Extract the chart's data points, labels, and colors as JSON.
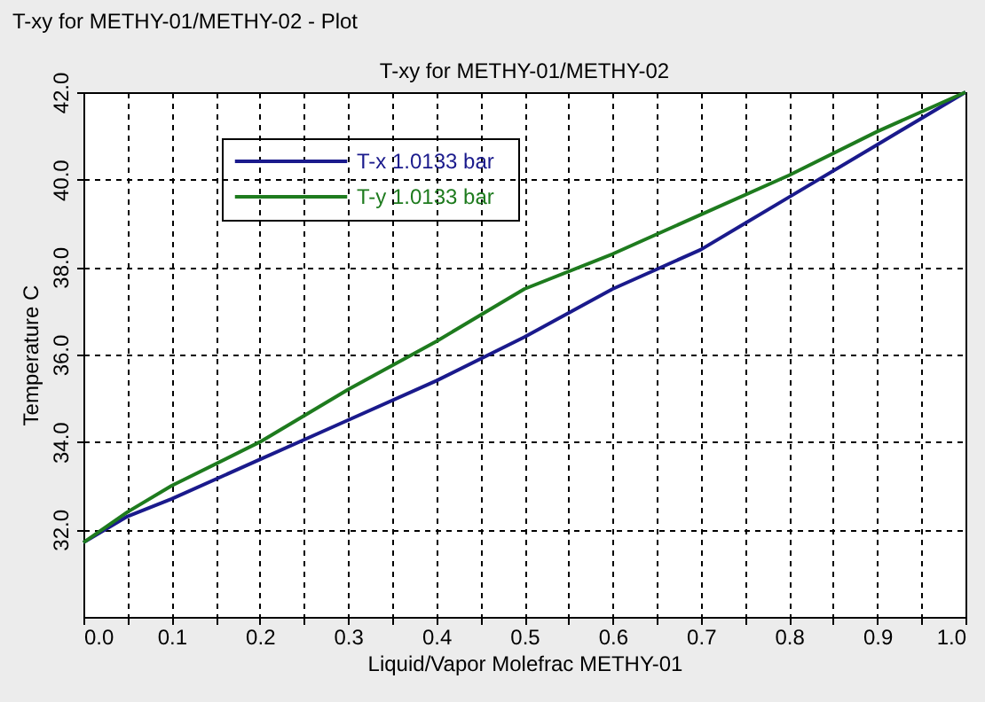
{
  "chart_data": {
    "type": "line",
    "title": "T-xy for METHY-01/METHY-02",
    "xlabel": "Liquid/Vapor Molefrac METHY-01",
    "ylabel": "Temperature  C",
    "annotations": [
      "T-xy for METHY-01/METHY-02 - Plot"
    ],
    "x": [
      0,
      0.05,
      0.1,
      0.2,
      0.3,
      0.4,
      0.5,
      0.6,
      0.7,
      0.8,
      0.9,
      1.0
    ],
    "series": [
      {
        "name": "T-x   1.0133 bar",
        "color": "#1a1a8c",
        "values": [
          31.7,
          32.3,
          32.7,
          33.6,
          34.5,
          35.4,
          36.4,
          37.5,
          38.4,
          39.6,
          40.8,
          42.0
        ]
      },
      {
        "name": "T-y   1.0133 bar",
        "color": "#1e7b1e",
        "values": [
          31.7,
          32.4,
          33.0,
          34.0,
          35.2,
          36.3,
          37.5,
          38.3,
          39.2,
          40.1,
          41.1,
          42.0
        ]
      }
    ],
    "xlim": [
      0,
      1
    ],
    "ylim": [
      30,
      42
    ],
    "xticks": [
      {
        "value": 0,
        "label": "0.0"
      },
      {
        "value": 0.05,
        "label": null
      },
      {
        "value": 0.1,
        "label": "0.1"
      },
      {
        "value": 0.15,
        "label": null
      },
      {
        "value": 0.2,
        "label": "0.2"
      },
      {
        "value": 0.25,
        "label": null
      },
      {
        "value": 0.3,
        "label": "0.3"
      },
      {
        "value": 0.35,
        "label": null
      },
      {
        "value": 0.4,
        "label": "0.4"
      },
      {
        "value": 0.45,
        "label": null
      },
      {
        "value": 0.5,
        "label": "0.5"
      },
      {
        "value": 0.55,
        "label": null
      },
      {
        "value": 0.6,
        "label": "0.6"
      },
      {
        "value": 0.65,
        "label": null
      },
      {
        "value": 0.7,
        "label": "0.7"
      },
      {
        "value": 0.75,
        "label": null
      },
      {
        "value": 0.8,
        "label": "0.8"
      },
      {
        "value": 0.85,
        "label": null
      },
      {
        "value": 0.9,
        "label": "0.9"
      },
      {
        "value": 0.95,
        "label": null
      },
      {
        "value": 1.0,
        "label": "1.0"
      }
    ],
    "yticks": [
      {
        "value": 32,
        "label": "32.0"
      },
      {
        "value": 34,
        "label": "34.0"
      },
      {
        "value": 36,
        "label": "36.0"
      },
      {
        "value": 38,
        "label": "38.0"
      },
      {
        "value": 40,
        "label": "40.0"
      },
      {
        "value": 42,
        "label": "42.0"
      }
    ],
    "grid": true,
    "legend": "top left",
    "marker": "none",
    "line_style": "solid"
  }
}
